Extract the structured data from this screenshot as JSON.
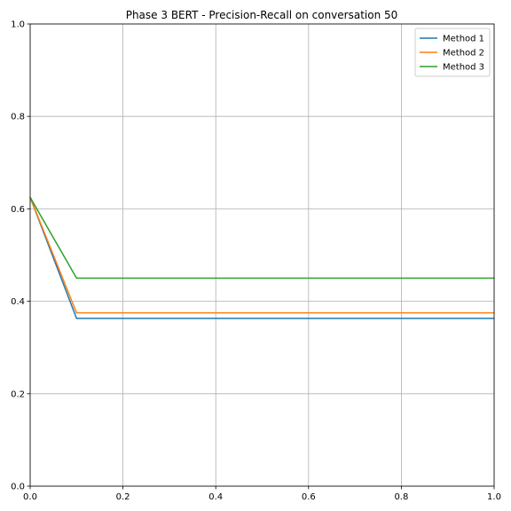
{
  "chart_data": {
    "type": "line",
    "title": "Phase 3 BERT - Precision-Recall on conversation 50",
    "xlabel": "",
    "ylabel": "",
    "xlim": [
      0,
      1
    ],
    "ylim": [
      0,
      1
    ],
    "grid": true,
    "legend_position": "top-right",
    "x_ticks": [
      "0.0",
      "0.2",
      "0.4",
      "0.6",
      "0.8",
      "1.0"
    ],
    "y_ticks": [
      "0.0",
      "0.2",
      "0.4",
      "0.6",
      "0.8",
      "1.0"
    ],
    "series": [
      {
        "name": "Method 1",
        "color": "#1f77b4",
        "x": [
          0.0,
          0.1,
          1.0
        ],
        "y": [
          0.625,
          0.363,
          0.363
        ]
      },
      {
        "name": "Method 2",
        "color": "#ff7f0e",
        "x": [
          0.0,
          0.1,
          1.0
        ],
        "y": [
          0.625,
          0.375,
          0.375
        ]
      },
      {
        "name": "Method 3",
        "color": "#2ca02c",
        "x": [
          0.0,
          0.1,
          1.0
        ],
        "y": [
          0.625,
          0.45,
          0.45
        ]
      }
    ]
  }
}
